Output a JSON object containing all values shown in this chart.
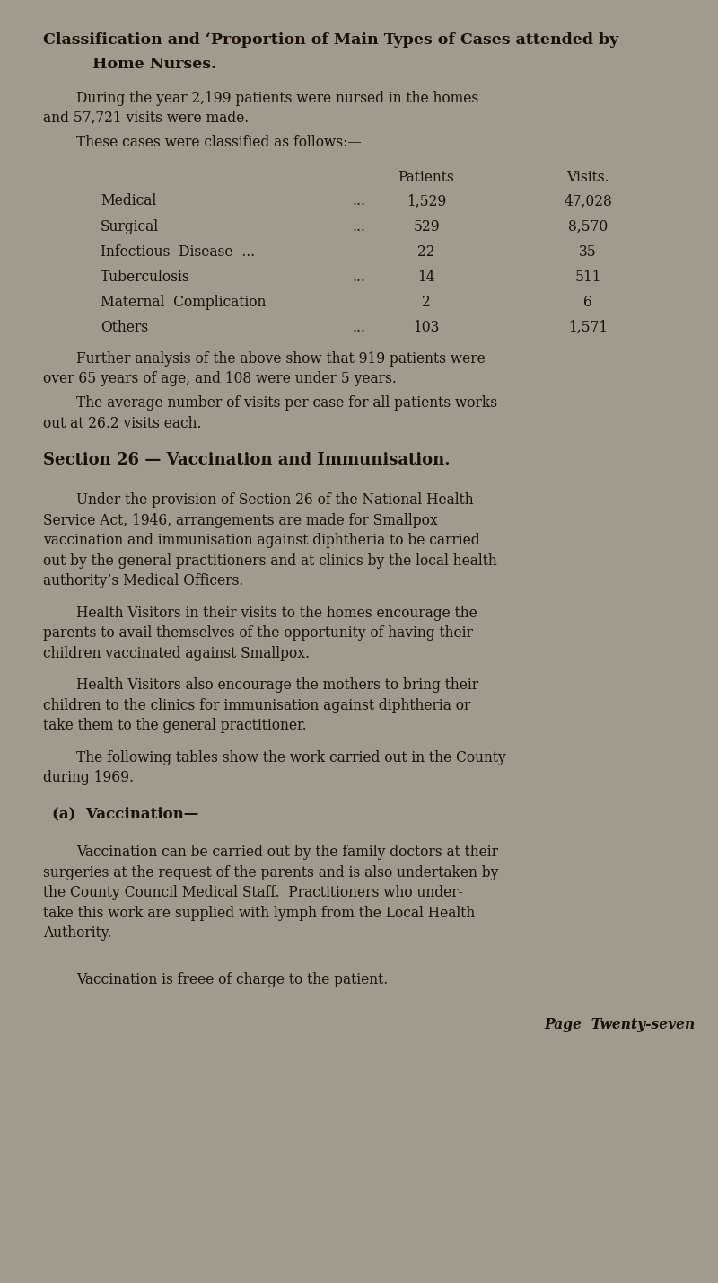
{
  "bg_color": "#a09b8c",
  "text_color": "#1a1008",
  "page_width": 8.0,
  "page_height": 14.28,
  "dpi": 100,
  "title_line1": "Classification and ‘Proportion of Main Types of Cases attended by",
  "title_line2": "        Home Nurses.",
  "para1_line1": "During the year 2,199 patients were nursed in the homes",
  "para1_line2": "and 57,721 visits were made.",
  "para2": "These cases were classified as follows:—",
  "table_header_patients": "Patients",
  "table_header_visits": "Visits.",
  "table_rows": [
    [
      "Medical",
      "...",
      "1,529",
      "47,028"
    ],
    [
      "Surgical",
      "...",
      "529",
      "8,570"
    ],
    [
      "Infectious  Disease  ...",
      "",
      "22",
      "35"
    ],
    [
      "Tuberculosis",
      "...",
      "14",
      "511"
    ],
    [
      "Maternal  Complication",
      "",
      "2",
      "6"
    ],
    [
      "Others",
      "...",
      "103",
      "1,571"
    ]
  ],
  "para3_line1": "Further analysis of the above show that 919 patients were",
  "para3_line2": "over 65 years of age, and 108 were under 5 years.",
  "para4_line1": "The average number of visits per case for all patients works",
  "para4_line2": "out at 26.2 visits each.",
  "section_title": "Section 26 — Vaccination and Immunisation.",
  "s1": [
    "Under the provision of Section 26 of the National Health",
    "Service Act, 1946, arrangements are made for Smallpox",
    "vaccination and immunisation against diphtheria to be carried",
    "out by the general practitioners and at clinics by the local health",
    "authority’s Medical Officers."
  ],
  "s2": [
    "Health Visitors in their visits to the homes encourage the",
    "parents to avail themselves of the opportunity of having their",
    "children vaccinated against Smallpox."
  ],
  "s3": [
    "Health Visitors also encourage the mothers to bring their",
    "children to the clinics for immunisation against diphtheria or",
    "take them to the general practitioner."
  ],
  "s4": [
    "The following tables show the work carried out in the County",
    "during 1969."
  ],
  "subsection_title": "(a)  Vaccination—",
  "sp1": [
    "Vaccination can be carried out by the family doctors at their",
    "surgeries at the request of the parents and is also undertaken by",
    "the County Council Medical Staff.  Practitioners who under-",
    "take this work are supplied with lymph from the Local Health",
    "Authority."
  ],
  "sp2": "Vaccination is freee of charge to the patient.",
  "page_footer": "Page  Twenty-seven"
}
